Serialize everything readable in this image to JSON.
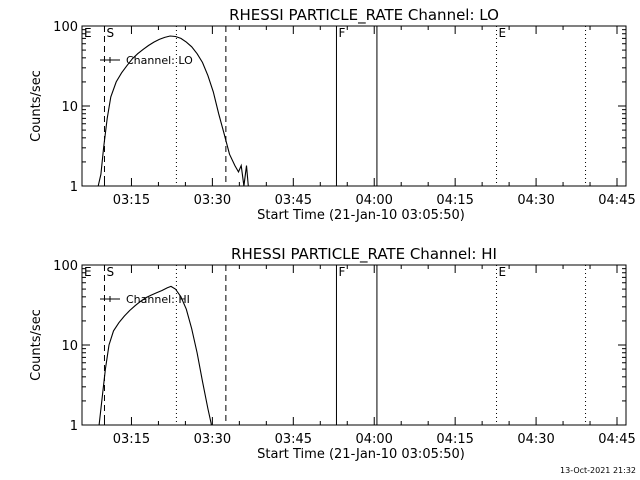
{
  "timestamp": "13-Oct-2021 21:32",
  "chart_data": [
    {
      "type": "line",
      "title": "RHESSI PARTICLE_RATE Channel: LO",
      "xlabel": "Start Time (21-Jan-10 03:05:50)",
      "ylabel": "Counts/sec",
      "yscale": "log",
      "ylim": [
        1,
        100
      ],
      "yticks": [
        "1",
        "10",
        "100"
      ],
      "xlim": [
        "03:05:50",
        "04:46:40"
      ],
      "xticks": [
        "03:15",
        "03:30",
        "03:45",
        "04:00",
        "04:15",
        "04:30",
        "04:45"
      ],
      "legend": "Channel: LO",
      "markers": [
        {
          "time": "03:10:00",
          "style": "dashed",
          "label": "S"
        },
        {
          "time": "03:23:20",
          "style": "dotted",
          "label": ""
        },
        {
          "time": "03:32:30",
          "style": "dashed",
          "label": ""
        },
        {
          "time": "03:53:00",
          "style": "solid",
          "label": "F"
        },
        {
          "time": "04:00:30",
          "style": "solid",
          "label": ""
        },
        {
          "time": "04:22:40",
          "style": "dotted",
          "label": "E"
        },
        {
          "time": "04:39:10",
          "style": "dotted",
          "label": ""
        }
      ],
      "edge_label": "E",
      "series": [
        {
          "name": "Channel: LO",
          "x": [
            "03:08:50",
            "03:09:20",
            "03:09:50",
            "03:10:30",
            "03:11:10",
            "03:12:10",
            "03:13:10",
            "03:14:10",
            "03:15:10",
            "03:16:10",
            "03:17:10",
            "03:18:10",
            "03:19:10",
            "03:20:10",
            "03:21:10",
            "03:22:10",
            "03:23:10",
            "03:24:10",
            "03:25:10",
            "03:26:10",
            "03:27:10",
            "03:28:10",
            "03:29:10",
            "03:30:10",
            "03:31:10",
            "03:32:10",
            "03:33:10",
            "03:34:10",
            "03:34:50",
            "03:35:20",
            "03:35:50",
            "03:36:20",
            "03:36:40"
          ],
          "y": [
            1.0,
            1.4,
            3.0,
            7.0,
            13,
            20,
            26,
            32,
            39,
            45,
            51,
            57,
            63,
            68,
            72,
            75,
            74,
            70,
            63,
            55,
            45,
            35,
            24,
            15,
            8,
            4.5,
            2.5,
            1.8,
            1.5,
            1.8,
            1.0,
            1.8,
            1.0
          ]
        }
      ]
    },
    {
      "type": "line",
      "title": "RHESSI PARTICLE_RATE Channel: HI",
      "xlabel": "Start Time (21-Jan-10 03:05:50)",
      "ylabel": "Counts/sec",
      "yscale": "log",
      "ylim": [
        1,
        100
      ],
      "yticks": [
        "1",
        "10",
        "100"
      ],
      "xlim": [
        "03:05:50",
        "04:46:40"
      ],
      "xticks": [
        "03:15",
        "03:30",
        "03:45",
        "04:00",
        "04:15",
        "04:30",
        "04:45"
      ],
      "legend": "Channel: HI",
      "markers": [
        {
          "time": "03:10:00",
          "style": "dashed",
          "label": "S"
        },
        {
          "time": "03:23:20",
          "style": "dotted",
          "label": ""
        },
        {
          "time": "03:32:30",
          "style": "dashed",
          "label": ""
        },
        {
          "time": "03:53:00",
          "style": "solid",
          "label": "F"
        },
        {
          "time": "04:00:30",
          "style": "solid",
          "label": ""
        },
        {
          "time": "04:22:40",
          "style": "dotted",
          "label": "E"
        },
        {
          "time": "04:39:10",
          "style": "dotted",
          "label": ""
        }
      ],
      "edge_label": "E",
      "series": [
        {
          "name": "Channel: HI",
          "x": [
            "03:09:00",
            "03:09:30",
            "03:10:10",
            "03:10:50",
            "03:11:40",
            "03:12:40",
            "03:13:40",
            "03:14:40",
            "03:15:40",
            "03:16:40",
            "03:17:40",
            "03:18:40",
            "03:19:40",
            "03:20:40",
            "03:21:40",
            "03:22:20",
            "03:23:10",
            "03:24:10",
            "03:25:10",
            "03:26:10",
            "03:27:10",
            "03:28:10",
            "03:29:10",
            "03:29:50"
          ],
          "y": [
            1.0,
            2.0,
            5.0,
            10,
            15,
            19,
            23,
            27,
            31,
            35,
            39,
            42,
            45,
            48,
            52,
            54,
            50,
            40,
            28,
            16,
            8,
            3.5,
            1.6,
            1.0
          ]
        }
      ]
    }
  ]
}
